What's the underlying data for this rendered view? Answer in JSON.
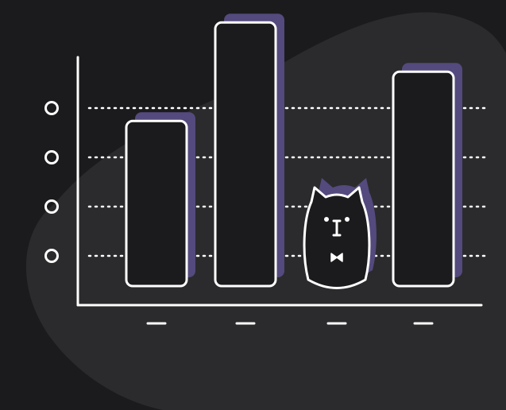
{
  "colors": {
    "background": "#1b1b1d",
    "blob": "#2b2b2d",
    "stroke": "#ffffff",
    "shadow": "#544a7d",
    "bar_fill": "#1b1b1d"
  },
  "chart_data": {
    "type": "bar",
    "categories": [
      "",
      "",
      "",
      ""
    ],
    "values": [
      3.35,
      5.35,
      2.0,
      4.35
    ],
    "ylim": [
      0,
      6.0
    ],
    "grid": true,
    "y_tick_count": 4,
    "third_bar_is_cat_character": true
  },
  "icons": [
    "y-axis-circle-marker",
    "x-axis-dash-marker",
    "cat-face-icon"
  ]
}
